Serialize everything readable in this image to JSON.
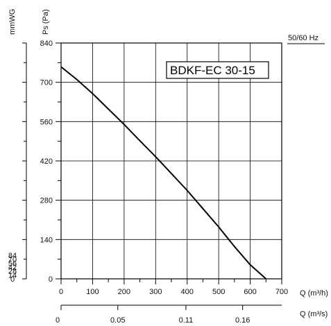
{
  "chart_data": {
    "type": "line",
    "model_label": "BDKF-EC 30-15",
    "frequency_label": "50/60 Hz",
    "axis_titles": {
      "mmwg": "mmWG",
      "pa": "Ps (Pa)",
      "q_m3h": "Q (m³/h)",
      "q_m3s": "Q (m³/s)"
    },
    "x": {
      "unit": "m³/h",
      "range": [
        0,
        700
      ],
      "ticks": [
        0,
        100,
        200,
        300,
        400,
        500,
        600,
        700
      ]
    },
    "x2": {
      "unit": "m³/s",
      "ticks": [
        0,
        0.05,
        0.11,
        0.16
      ],
      "tick_labels": [
        "0",
        "0.05",
        "0.11",
        "0.16"
      ]
    },
    "y_pa": {
      "unit": "Pa",
      "range": [
        0,
        840
      ],
      "ticks": [
        0,
        140,
        280,
        420,
        560,
        700,
        840
      ]
    },
    "y_mmwg": {
      "unit": "mmWG",
      "ticks": [
        0,
        14,
        28,
        42,
        56,
        70,
        84
      ]
    },
    "grid": true,
    "series": [
      {
        "x": [
          0,
          50,
          100,
          150,
          200,
          250,
          300,
          350,
          400,
          450,
          500,
          550,
          600,
          650
        ],
        "y": [
          755,
          710,
          660,
          605,
          550,
          492,
          435,
          375,
          315,
          250,
          185,
          115,
          50,
          0
        ]
      }
    ]
  }
}
